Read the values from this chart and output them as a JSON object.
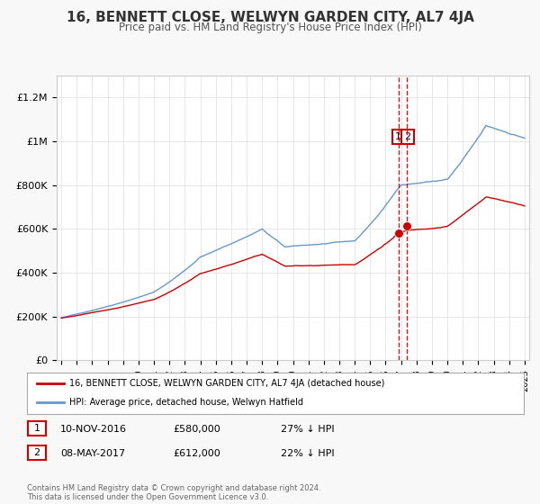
{
  "title": "16, BENNETT CLOSE, WELWYN GARDEN CITY, AL7 4JA",
  "subtitle": "Price paid vs. HM Land Registry's House Price Index (HPI)",
  "legend_label_red": "16, BENNETT CLOSE, WELWYN GARDEN CITY, AL7 4JA (detached house)",
  "legend_label_blue": "HPI: Average price, detached house, Welwyn Hatfield",
  "transaction1_date": "10-NOV-2016",
  "transaction1_price": "£580,000",
  "transaction1_hpi": "27% ↓ HPI",
  "transaction2_date": "08-MAY-2017",
  "transaction2_price": "£612,000",
  "transaction2_hpi": "22% ↓ HPI",
  "footer": "Contains HM Land Registry data © Crown copyright and database right 2024.\nThis data is licensed under the Open Government Licence v3.0.",
  "ylim": [
    0,
    1300000
  ],
  "yticks": [
    0,
    200000,
    400000,
    600000,
    800000,
    1000000,
    1200000
  ],
  "ytick_labels": [
    "£0",
    "£200K",
    "£400K",
    "£600K",
    "£800K",
    "£1M",
    "£1.2M"
  ],
  "background_color": "#f8f8f8",
  "plot_bg_color": "#ffffff",
  "red_color": "#cc0000",
  "blue_color": "#6699cc",
  "dashed_color": "#cc0000",
  "transaction1_x": 2016.86,
  "transaction1_y": 580000,
  "transaction2_x": 2017.36,
  "transaction2_y": 612000,
  "xmin": 1995,
  "xmax": 2025
}
